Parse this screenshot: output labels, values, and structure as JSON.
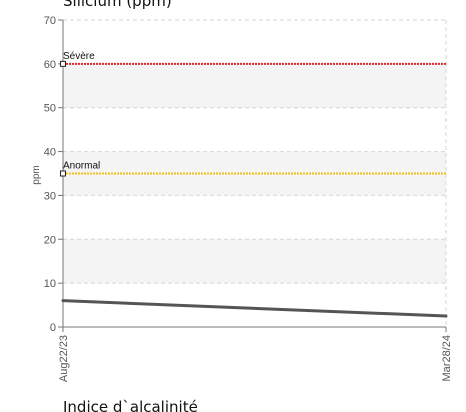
{
  "chart_data": {
    "type": "line",
    "title": "Silicium (ppm)",
    "ylabel": "ppm",
    "xlabel": "",
    "ylim": [
      0,
      70
    ],
    "y_ticks": [
      "0",
      "10",
      "20",
      "30",
      "40",
      "50",
      "60",
      "70"
    ],
    "x": [
      "Aug22/23",
      "Mar28/24"
    ],
    "series": [
      {
        "values": [
          6,
          2.5
        ],
        "color": "#555555"
      }
    ],
    "thresholds": [
      {
        "label": "Sévère",
        "value": 60,
        "color": "#e8262b"
      },
      {
        "label": "Anormal",
        "value": 35,
        "color": "#f2c21b"
      }
    ],
    "grid": true
  },
  "next_chart": {
    "title": "Indice d`alcalinité"
  }
}
